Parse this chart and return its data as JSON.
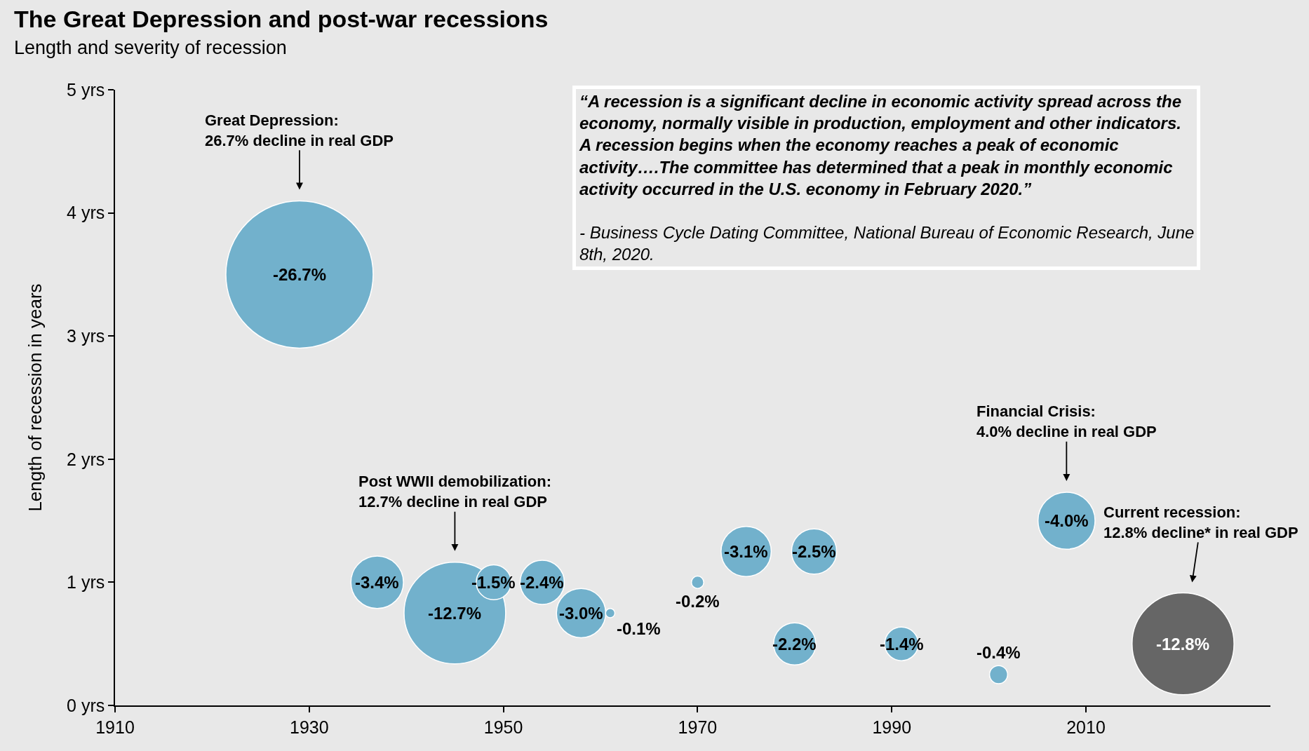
{
  "chart_data": {
    "type": "bubble",
    "title": "The Great Depression and post-war recessions",
    "subtitle": "Length and severity of recession",
    "ylabel": "Length of recession in years",
    "x": [
      1929,
      1937,
      1945,
      1949,
      1954,
      1958,
      1961,
      1970,
      1975,
      1980,
      1982,
      1991,
      2001,
      2008,
      2020
    ],
    "values": [
      3.5,
      1,
      0.75,
      1,
      1,
      0.75,
      0.75,
      1,
      1.25,
      0.5,
      1.25,
      0.5,
      0.25,
      1.5,
      0.5
    ],
    "sizes": [
      1,
      0.127,
      0.476,
      0.056,
      0.09,
      0.112,
      0.004,
      0.007,
      0.116,
      0.082,
      0.094,
      0.052,
      0.015,
      0.15,
      0.479
    ],
    "colors": [
      "#72b1cc",
      "#72b1cc",
      "#72b1cc",
      "#72b1cc",
      "#72b1cc",
      "#72b1cc",
      "#72b1cc",
      "#72b1cc",
      "#72b1cc",
      "#72b1cc",
      "#72b1cc",
      "#72b1cc",
      "#72b1cc",
      "#72b1cc",
      "#666666"
    ],
    "xlim": [
      1910,
      2029
    ],
    "xticks": [
      1910,
      1930,
      1950,
      1970,
      1990,
      2010
    ],
    "ylim": [
      0,
      5
    ],
    "yticks": [
      {
        "value": 0,
        "label": "0 yrs"
      },
      {
        "value": 1,
        "label": "1 yrs"
      },
      {
        "value": 2,
        "label": "2 yrs"
      },
      {
        "value": 3,
        "label": "3 yrs"
      },
      {
        "value": 4,
        "label": "4 yrs"
      },
      {
        "value": 5,
        "label": "5 yrs"
      }
    ],
    "annotations": [
      {
        "text": "Great Depression:\n26.7% decline in real GDP",
        "x": 1929,
        "y": 3.5
      },
      {
        "text": "Post WWII demobilization:\n12.7% decline in real GDP",
        "x": 1945,
        "y": 0.75
      },
      {
        "text": "Financial Crisis:\n4.0% decline in real GDP",
        "x": 2008,
        "y": 1.5
      },
      {
        "text": "Current recession:\n12.8% decline* in real GDP",
        "x": 2020,
        "y": 0.5
      },
      {
        "text": "-26.7%",
        "x": 1929,
        "y": 3.5
      },
      {
        "text": "-3.4%",
        "x": 1937,
        "y": 1
      },
      {
        "text": "-12.7%",
        "x": 1945,
        "y": 0.75
      },
      {
        "text": "-1.5%",
        "x": 1949,
        "y": 1
      },
      {
        "text": "-2.4%",
        "x": 1954,
        "y": 1
      },
      {
        "text": "-3.0%",
        "x": 1958,
        "y": 0.75
      },
      {
        "text": "-0.1%",
        "x": 1961,
        "y": 0.75
      },
      {
        "text": "-0.2%",
        "x": 1970,
        "y": 1
      },
      {
        "text": "-3.1%",
        "x": 1975,
        "y": 1.25
      },
      {
        "text": "-2.2%",
        "x": 1980,
        "y": 0.5
      },
      {
        "text": "-2.5%",
        "x": 1982,
        "y": 1.25
      },
      {
        "text": "-1.4%",
        "x": 1991,
        "y": 0.5
      },
      {
        "text": "-0.4%",
        "x": 2001,
        "y": 0.25
      },
      {
        "text": "-4.0%",
        "x": 2008,
        "y": 1.5
      },
      {
        "text": "-12.8%",
        "x": 2020,
        "y": 0.5
      },
      "“A recession is a significant decline in economic activity spread across the\neconomy, normally visible in production, employment and other indicators.\nA recession begins when the economy reaches a peak of economic\nactivity….The committee has determined that a peak in monthly economic\nactivity occurred in the U.S. economy in February 2020.”",
      "- Business Cycle Dating Committee, National Bureau of Economic Research, June\n8th, 2020."
    ]
  }
}
